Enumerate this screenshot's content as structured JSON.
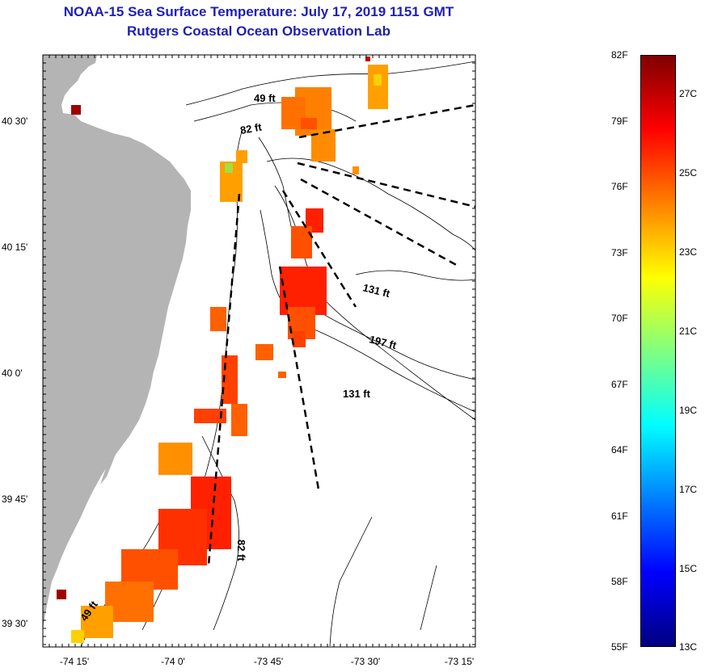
{
  "header": {
    "title": "NOAA-15 Sea Surface Temperature:  July 17, 2019 1151 GMT",
    "subtitle": "Rutgers Coastal Ocean Observation Lab"
  },
  "map": {
    "x_ticks": [
      "-74 15'",
      "-74 0'",
      "-73 45'",
      "-73 30'",
      "-73 15'"
    ],
    "y_ticks": [
      "40 30'",
      "40 15'",
      "40 0'",
      "39 45'",
      "39 30'"
    ],
    "land_color": "#b4b4b4",
    "water_color": "#ffffff",
    "depth_labels": {
      "d49_top": "49 ft",
      "d82_top": "82 ft",
      "d131_mid": "131 ft",
      "d197": "197 ft",
      "d131_low": "131 ft",
      "d82_bottom": "82 ft",
      "d49_bottom": "49 ft"
    }
  },
  "colorbar": {
    "fahrenheit": [
      "82F",
      "79F",
      "76F",
      "73F",
      "70F",
      "67F",
      "64F",
      "61F",
      "58F",
      "55F"
    ],
    "celsius": [
      "27C",
      "25C",
      "23C",
      "21C",
      "19C",
      "17C",
      "15C",
      "13C"
    ],
    "colors": [
      "#800000",
      "#ff0000",
      "#ff8000",
      "#ffff00",
      "#80ff80",
      "#00ffff",
      "#0080ff",
      "#0000ff",
      "#000080"
    ]
  }
}
